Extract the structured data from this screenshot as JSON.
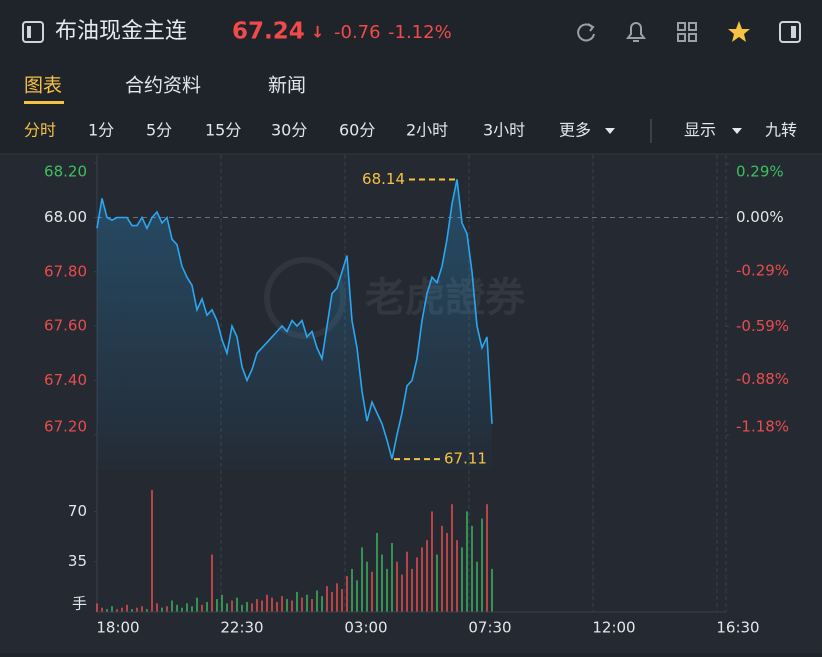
{
  "header": {
    "title": "布油现金主连",
    "price": "67.24",
    "arrow": "↓",
    "change": "-0.76",
    "change_pct": "-1.12%"
  },
  "tabs": [
    {
      "label": "图表",
      "active": true
    },
    {
      "label": "合约资料"
    },
    {
      "label": "新闻"
    }
  ],
  "periods": [
    {
      "label": "分时",
      "active": true
    },
    {
      "label": "1分"
    },
    {
      "label": "5分"
    },
    {
      "label": "15分"
    },
    {
      "label": "30分"
    },
    {
      "label": "60分"
    },
    {
      "label": "2小时"
    },
    {
      "label": "3小时"
    },
    {
      "label": "更多",
      "menu": true
    }
  ],
  "options": [
    {
      "label": "显示",
      "menu": true
    },
    {
      "label": "九转"
    }
  ],
  "chart_data": {
    "type": "line",
    "color": "#2ba7f0",
    "values": [
      67.96,
      68.07,
      68.0,
      67.99,
      68.0,
      68.0,
      68.0,
      67.97,
      67.97,
      68.0,
      67.96,
      68.0,
      68.02,
      67.98,
      68.0,
      67.92,
      67.9,
      67.82,
      67.78,
      67.75,
      67.66,
      67.7,
      67.64,
      67.66,
      67.62,
      67.55,
      67.5,
      67.6,
      67.56,
      67.45,
      67.4,
      67.44,
      67.5,
      67.52,
      67.54,
      67.56,
      67.58,
      67.6,
      67.58,
      67.62,
      67.6,
      67.62,
      67.56,
      67.58,
      67.52,
      67.48,
      67.6,
      67.72,
      67.74,
      67.8,
      67.86,
      67.62,
      67.52,
      67.36,
      67.25,
      67.32,
      67.28,
      67.24,
      67.18,
      67.11,
      67.2,
      67.28,
      67.38,
      67.4,
      67.48,
      67.62,
      67.72,
      67.78,
      67.76,
      67.82,
      67.92,
      68.05,
      68.14,
      67.98,
      67.94,
      67.8,
      67.6,
      67.52,
      67.56,
      67.24
    ],
    "ylim": [
      67.07,
      68.23
    ],
    "yticks": [
      {
        "value": 68.2,
        "label": "68.20"
      },
      {
        "value": 68,
        "label": "68.00"
      },
      {
        "value": 67.8,
        "label": "67.80"
      },
      {
        "value": 67.6,
        "label": "67.60"
      },
      {
        "value": 67.4,
        "label": "67.40"
      },
      {
        "value": 67.2,
        "label": "67.20"
      }
    ],
    "base_line": 68,
    "y2lim": [
      -1.37,
      0.34
    ],
    "y2ticks": [
      {
        "value": 0.29,
        "label": "0.29%"
      },
      {
        "value": 0,
        "label": "0.00%"
      },
      {
        "value": -0.29,
        "label": "-0.29%"
      },
      {
        "value": -0.59,
        "label": "-0.59%"
      },
      {
        "value": -0.88,
        "label": "-0.88%"
      },
      {
        "value": -1.18,
        "label": "-1.18%"
      }
    ],
    "xticks": [
      "18:00",
      "22:30",
      "03:00",
      "07:30",
      "12:00",
      "16:30"
    ],
    "high": 68.14,
    "low": 67.11,
    "watermark": "老虎證券",
    "up_color": "#e84d4d",
    "down_color": "#3cb55e",
    "volume": {
      "type": "bar",
      "unit": "手",
      "ylim": [
        0,
        87
      ],
      "yticks": [
        70,
        35
      ],
      "values": [
        6,
        3,
        2,
        4,
        2,
        3,
        5,
        2,
        3,
        4,
        2,
        85,
        6,
        3,
        4,
        8,
        5,
        3,
        6,
        4,
        10,
        5,
        7,
        40,
        9,
        12,
        6,
        8,
        10,
        5,
        7,
        6,
        9,
        8,
        12,
        10,
        7,
        11,
        9,
        8,
        14,
        10,
        12,
        9,
        15,
        11,
        18,
        14,
        20,
        16,
        25,
        30,
        22,
        45,
        35,
        28,
        55,
        40,
        30,
        48,
        35,
        26,
        42,
        30,
        38,
        45,
        50,
        70,
        40,
        60,
        55,
        75,
        50,
        45,
        70,
        60,
        35,
        65,
        75,
        30
      ]
    }
  }
}
